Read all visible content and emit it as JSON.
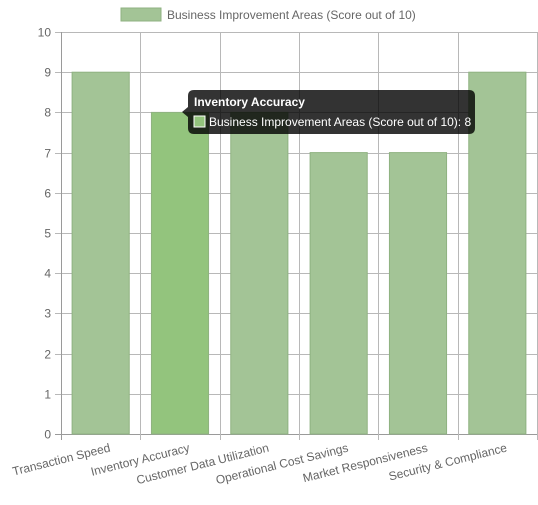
{
  "chart_data": {
    "type": "bar",
    "categories": [
      "Transaction Speed",
      "Inventory Accuracy",
      "Customer Data Utilization",
      "Operational Cost Savings",
      "Market Responsiveness",
      "Security & Compliance"
    ],
    "series": [
      {
        "name": "Business Improvement Areas (Score out of 10)",
        "values": [
          9,
          8,
          8,
          7,
          7,
          9
        ],
        "color": "#a3c496",
        "border_color": "#8fb281",
        "highlight_color": "#93c47d"
      }
    ],
    "ylim": [
      0,
      10
    ],
    "y_ticks": [
      0,
      1,
      2,
      3,
      4,
      5,
      6,
      7,
      8,
      9,
      10
    ],
    "grid": true,
    "legend_position": "top",
    "highlighted_category": "Inventory Accuracy"
  },
  "legend": {
    "label": "Business Improvement Areas (Score out of 10)"
  },
  "tooltip": {
    "title": "Inventory Accuracy",
    "body": "Business Improvement Areas (Score out of 10): 8"
  }
}
